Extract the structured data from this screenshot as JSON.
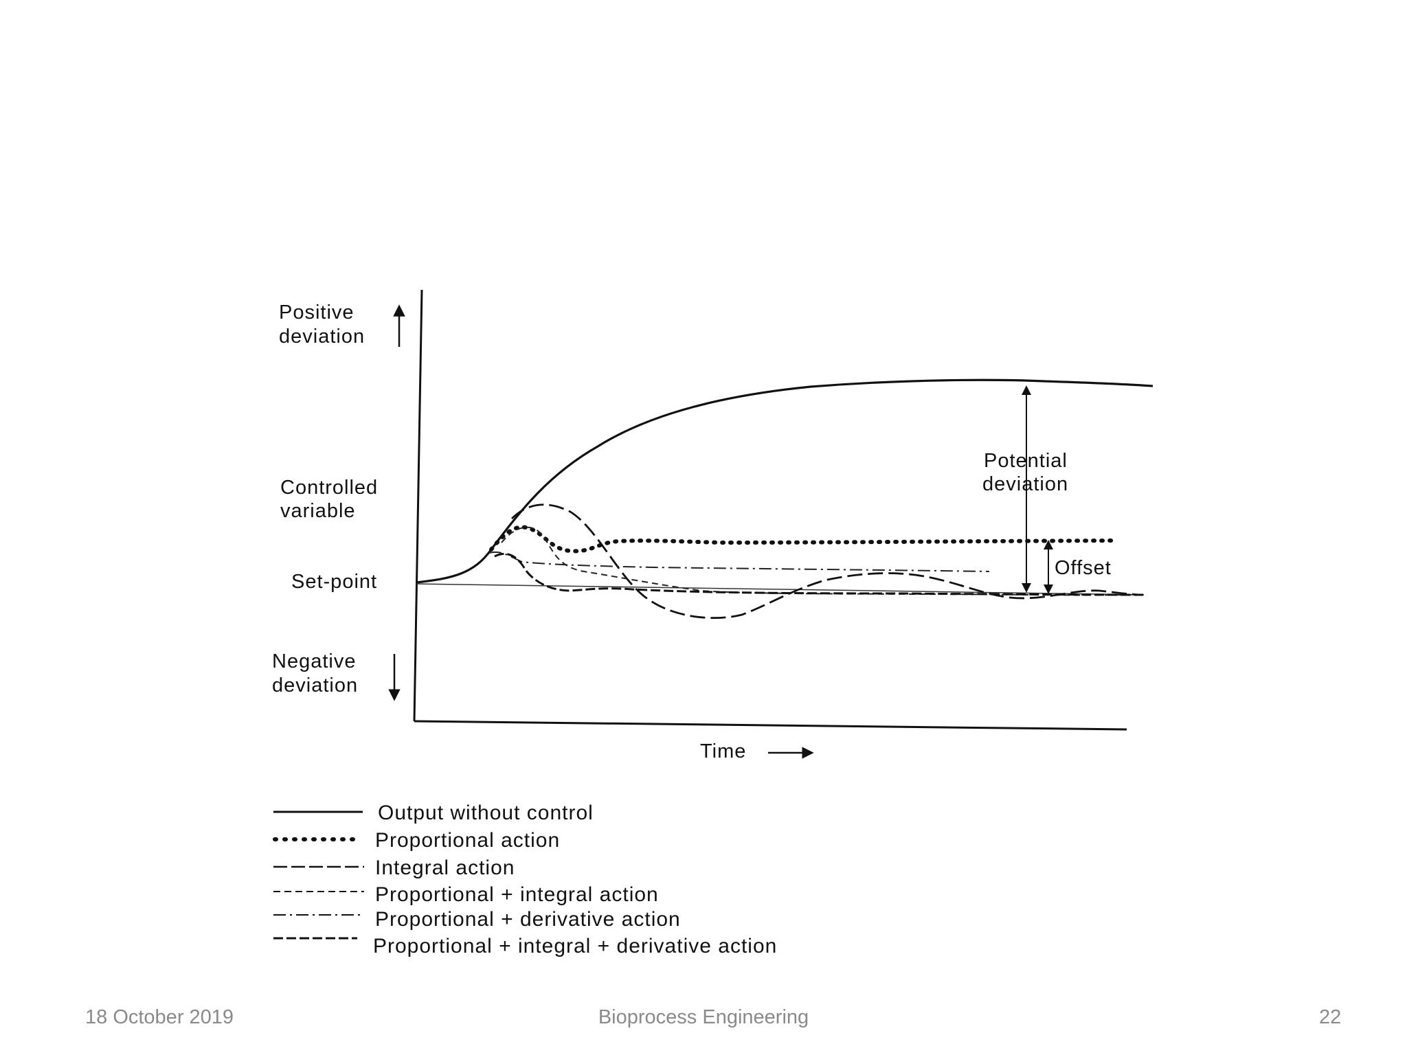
{
  "figure": {
    "y_axis_labels": {
      "positive_line1": "Positive",
      "positive_line2": "deviation",
      "controlled_line1": "Controlled",
      "controlled_line2": "variable",
      "setpoint": "Set-point",
      "negative_line1": "Negative",
      "negative_line2": "deviation"
    },
    "x_axis_label": "Time",
    "annotations": {
      "potential_line1": "Potential",
      "potential_line2": "deviation",
      "offset": "Offset"
    }
  },
  "legend": [
    {
      "label": "Output without control",
      "style": "solid"
    },
    {
      "label": "Proportional action",
      "style": "dotted"
    },
    {
      "label": "Integral action",
      "style": "long-dash"
    },
    {
      "label": "Proportional + integral action",
      "style": "short-dash"
    },
    {
      "label": "Proportional + derivative action",
      "style": "dash-dot"
    },
    {
      "label": "Proportional + integral + derivative action",
      "style": "dash"
    }
  ],
  "footer": {
    "date": "18 October 2019",
    "title": "Bioprocess Engineering",
    "page": "22"
  },
  "colors": {
    "ink": "#111111",
    "footer_text": "#8a8a8a"
  }
}
